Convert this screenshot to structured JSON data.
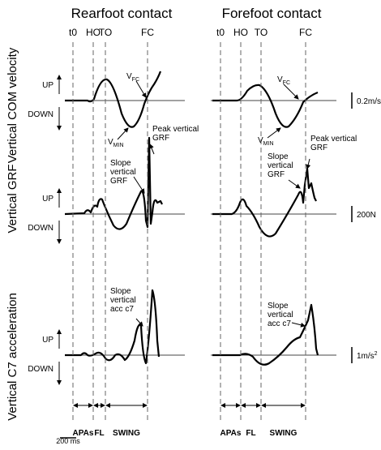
{
  "columns": [
    {
      "title": "Rearfoot contact",
      "events": [
        "t0",
        "HO",
        "TO",
        "FC"
      ]
    },
    {
      "title": "Forefoot contact",
      "events": [
        "t0",
        "HO",
        "TO",
        "FC"
      ]
    }
  ],
  "rows": [
    {
      "label": "Vertical COM velocity",
      "up": "UP",
      "down": "DOWN",
      "scale": {
        "text": "0.2m/s"
      }
    },
    {
      "label": "Vertical GRF",
      "up": "UP",
      "down": "DOWN",
      "scale": {
        "text": "200N"
      }
    },
    {
      "label": "Vertical C7 acceleration",
      "up": "UP",
      "down": "DOWN",
      "scale": {
        "text": "1m/s",
        "sup": "2"
      }
    }
  ],
  "annotations": {
    "v_fc": {
      "main": "V",
      "sub": "FC"
    },
    "v_min": {
      "main": "V",
      "sub": "MIN"
    },
    "peak_grf": [
      "Peak vertical",
      "GRF"
    ],
    "slope_grf": [
      "Slope",
      "vertical",
      "GRF"
    ],
    "slope_c7": [
      "Slope",
      "vertical",
      "acc c7"
    ]
  },
  "phases": [
    "APAs",
    "FL",
    "SWING"
  ],
  "time_scale": "200 ms"
}
